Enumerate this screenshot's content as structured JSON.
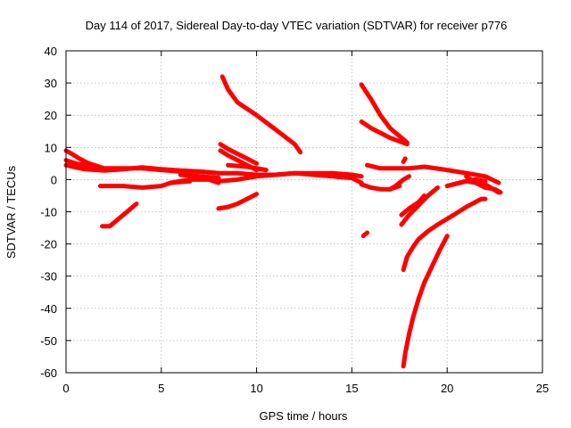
{
  "chart_data": {
    "type": "line",
    "title": "Day 114 of 2017, Sidereal Day-to-day VTEC variation (SDTVAR) for receiver p776",
    "xlabel": "GPS time / hours",
    "ylabel": "SDTVAR / TECUs",
    "xlim": [
      0,
      25
    ],
    "ylim": [
      -60,
      40
    ],
    "xticks": [
      0,
      5,
      10,
      15,
      20,
      25
    ],
    "yticks": [
      -60,
      -50,
      -40,
      -30,
      -20,
      -10,
      0,
      10,
      20,
      30,
      40
    ],
    "grid": true,
    "legend": "none",
    "series_color": "#ff0000",
    "series": [
      {
        "x": [
          0,
          0.3,
          0.7,
          1.2,
          2,
          3,
          4,
          5,
          6,
          7,
          8,
          9,
          10,
          11,
          12,
          13,
          14,
          15,
          15.5
        ],
        "y": [
          9,
          8,
          6.5,
          5,
          3.5,
          3.5,
          3.5,
          3,
          2.5,
          2.5,
          2,
          2,
          1.5,
          1.5,
          2,
          2,
          2,
          1.5,
          1
        ]
      },
      {
        "x": [
          0,
          0.5,
          1,
          2,
          3,
          4,
          5,
          6,
          7,
          8
        ],
        "y": [
          4.5,
          3.8,
          3.2,
          2.8,
          3.2,
          3.8,
          3.2,
          2.8,
          2.5,
          2
        ]
      },
      {
        "x": [
          0,
          0.5,
          1.5
        ],
        "y": [
          6,
          5,
          4
        ]
      },
      {
        "x": [
          5.5,
          6.5,
          7.5,
          8
        ],
        "y": [
          -1,
          0,
          0,
          -1
        ]
      },
      {
        "x": [
          6,
          7,
          8
        ],
        "y": [
          1.5,
          1,
          0.5
        ]
      },
      {
        "x": [
          7.5,
          8
        ],
        "y": [
          0,
          0.5
        ]
      },
      {
        "x": [
          1.8,
          3,
          4,
          5,
          5.5,
          6.5
        ],
        "y": [
          -2,
          -2,
          -2.5,
          -2,
          -1,
          -0.5
        ]
      },
      {
        "x": [
          1.9,
          2.3,
          2.8,
          3.3,
          3.7
        ],
        "y": [
          -14.5,
          -14.5,
          -12,
          -9.5,
          -7.5
        ]
      },
      {
        "x": [
          8,
          8.5,
          9,
          9.5,
          10
        ],
        "y": [
          -9,
          -8.5,
          -7.5,
          -6,
          -4.5
        ]
      },
      {
        "x": [
          8.2,
          8.5,
          9,
          10,
          11,
          12,
          12.3
        ],
        "y": [
          32,
          28,
          24,
          20,
          15.5,
          11,
          8.5
        ]
      },
      {
        "x": [
          8.1,
          8.5,
          9,
          9.5,
          10
        ],
        "y": [
          11,
          9.5,
          8,
          6.5,
          5
        ]
      },
      {
        "x": [
          8.1,
          8.5,
          9,
          9.5,
          10
        ],
        "y": [
          9,
          7.5,
          6,
          4.5,
          3
        ]
      },
      {
        "x": [
          8.5,
          9.5,
          10.5
        ],
        "y": [
          4.5,
          4,
          3
        ]
      },
      {
        "x": [
          8,
          9,
          10,
          11,
          12,
          13,
          14,
          15,
          15.5
        ],
        "y": [
          -0.5,
          0,
          1,
          1.5,
          2,
          1.5,
          1,
          0.5,
          -1
        ]
      },
      {
        "x": [
          15.5,
          16,
          16.5,
          17,
          17.5,
          17.9
        ],
        "y": [
          29.5,
          25,
          20,
          16,
          13.5,
          11.5
        ]
      },
      {
        "x": [
          15.5,
          16,
          17,
          17.9
        ],
        "y": [
          18,
          16,
          13,
          11
        ]
      },
      {
        "x": [
          15.8,
          16.5,
          17.5,
          18,
          18.8,
          20,
          21,
          22,
          22.7
        ],
        "y": [
          4.5,
          3.5,
          3.5,
          3.5,
          4,
          3,
          2,
          1,
          -1
        ]
      },
      {
        "x": [
          15.5,
          16,
          16.5,
          17,
          17.5
        ],
        "y": [
          -1.5,
          -2.5,
          -3,
          -3,
          -2
        ]
      },
      {
        "x": [
          15.6,
          15.8
        ],
        "y": [
          -17.5,
          -16.5
        ]
      },
      {
        "x": [
          17,
          17.3,
          17.7,
          18
        ],
        "y": [
          -3,
          -2,
          0,
          1
        ]
      },
      {
        "x": [
          17.7,
          17.8,
          18,
          18.2,
          18.5,
          18.8,
          19.2,
          19.6,
          20
        ],
        "y": [
          -58,
          -54,
          -48,
          -43,
          -37,
          -32,
          -27,
          -22,
          -17.5
        ]
      },
      {
        "x": [
          17.7,
          17.9,
          18.2,
          18.5,
          19,
          19.5,
          20.2,
          21,
          21.8,
          22
        ],
        "y": [
          -28,
          -24,
          -21,
          -18.5,
          -16,
          -14,
          -11.5,
          -8.5,
          -6,
          -6
        ]
      },
      {
        "x": [
          17.6,
          18,
          18.5,
          19,
          19.5
        ],
        "y": [
          -14,
          -11,
          -8,
          -5,
          -2.5
        ]
      },
      {
        "x": [
          17.6,
          18,
          18.5,
          18.8
        ],
        "y": [
          -11,
          -9,
          -7,
          -5
        ]
      },
      {
        "x": [
          17.7,
          17.8
        ],
        "y": [
          5.5,
          6.5
        ]
      },
      {
        "x": [
          20,
          21,
          22,
          22.7
        ],
        "y": [
          -2,
          -0.5,
          -1.5,
          -4
        ]
      },
      {
        "x": [
          21,
          21.5,
          22,
          22.5,
          22.8
        ],
        "y": [
          1,
          -1,
          -2.5,
          -3,
          -4
        ]
      },
      {
        "x": [
          20.3,
          21,
          21.5,
          22
        ],
        "y": [
          -1.5,
          -0.5,
          0,
          -0.5
        ]
      }
    ]
  }
}
